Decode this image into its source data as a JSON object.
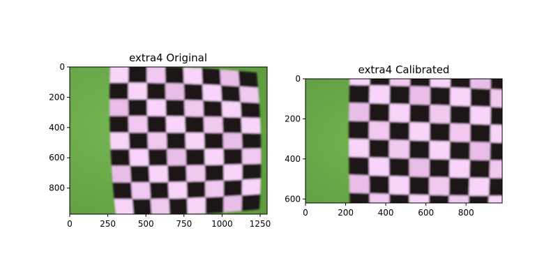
{
  "figure": {
    "panels": [
      {
        "title": "extra4 Original",
        "x_ticks": [
          "0",
          "250",
          "500",
          "750",
          "1000",
          "1250"
        ],
        "y_ticks": [
          "0",
          "200",
          "400",
          "600",
          "800"
        ],
        "x_range": [
          0,
          1296
        ],
        "y_range": [
          0,
          972
        ],
        "image": "green background with black and pink checkerboard calibration pattern, barrel distorted"
      },
      {
        "title": "extra4 Calibrated",
        "x_ticks": [
          "0",
          "200",
          "400",
          "600",
          "800"
        ],
        "y_ticks": [
          "0",
          "200",
          "400",
          "600"
        ],
        "x_range": [
          0,
          980
        ],
        "y_range": [
          0,
          620
        ],
        "image": "green background with black and pink checkerboard calibration pattern, undistorted and cropped"
      }
    ],
    "colors": {
      "background_green": "#6aaa4a",
      "dark_square": "#1e1219",
      "light_square": "#f0c8f0"
    }
  }
}
